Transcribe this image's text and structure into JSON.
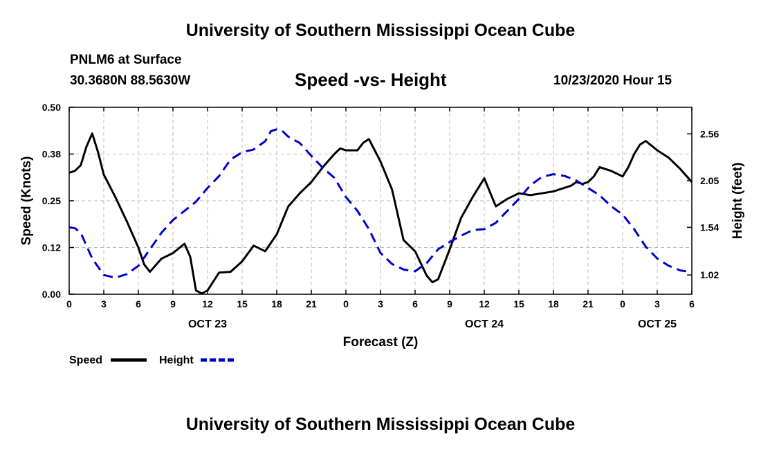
{
  "header": {
    "title": "University of Southern Mississippi Ocean Cube",
    "station": "PNLM6 at Surface",
    "coordinates": "30.3680N 88.5630W",
    "subtitle": "Speed -vs- Height",
    "datetime": "10/23/2020 Hour 15"
  },
  "footer": {
    "title": "University of Southern Mississippi Ocean Cube"
  },
  "colors": {
    "speed": "#000000",
    "height": "#0000cc",
    "grid": "#bbbbbb"
  },
  "chart_data": {
    "type": "line",
    "title": "Speed -vs- Height",
    "xlabel": "Forecast (Z)",
    "ylabel_left": "Speed (Knots)",
    "ylabel_right": "Height (feet)",
    "x_unit": "hours since 2020-10-23 00Z",
    "xlim": [
      0,
      54
    ],
    "ylim_left": [
      0,
      0.5
    ],
    "ylim_right": [
      0.81,
      2.85
    ],
    "x_ticks": [
      0,
      3,
      6,
      9,
      12,
      15,
      18,
      21,
      24,
      27,
      30,
      33,
      36,
      39,
      42,
      45,
      48,
      51,
      54
    ],
    "x_tick_labels": [
      "0",
      "3",
      "6",
      "9",
      "12",
      "15",
      "18",
      "21",
      "0",
      "3",
      "6",
      "9",
      "12",
      "15",
      "18",
      "21",
      "0",
      "3",
      "6"
    ],
    "date_labels": [
      {
        "x": 12,
        "label": "OCT 23"
      },
      {
        "x": 36,
        "label": "OCT 24"
      },
      {
        "x": 51,
        "label": "OCT 25"
      }
    ],
    "y_ticks_left": [
      0.0,
      0.125,
      0.25,
      0.375,
      0.5
    ],
    "y_tick_labels_left": [
      "0.00",
      "0.12",
      "0.25",
      "0.38",
      "0.50"
    ],
    "y_ticks_right": [
      1.02,
      1.54,
      2.05,
      2.56
    ],
    "y_tick_labels_right": [
      "1.02",
      "1.54",
      "2.05",
      "2.56"
    ],
    "grid": true,
    "legend_position": "bottom-left",
    "series": [
      {
        "name": "Speed",
        "axis": "left",
        "style": "solid",
        "x": [
          0,
          0.5,
          1,
          1.5,
          2,
          2.5,
          3,
          4,
          5,
          6,
          6.5,
          7,
          8,
          9,
          10,
          10.5,
          11,
          11.5,
          12,
          13,
          14,
          15,
          16,
          17,
          18,
          19,
          20,
          21,
          22,
          23,
          23.5,
          24,
          25,
          25.5,
          26,
          27,
          28,
          29,
          30,
          31,
          31.5,
          32,
          33,
          34,
          35,
          36,
          37,
          38,
          39,
          40,
          41,
          42,
          43,
          43.5,
          44,
          44.5,
          45,
          45.5,
          46,
          47,
          48,
          48.5,
          49,
          49.5,
          50,
          51,
          52,
          53,
          54
        ],
        "y": [
          0.325,
          0.33,
          0.345,
          0.395,
          0.43,
          0.38,
          0.32,
          0.26,
          0.195,
          0.125,
          0.08,
          0.06,
          0.095,
          0.11,
          0.135,
          0.1,
          0.01,
          0.002,
          0.01,
          0.058,
          0.06,
          0.088,
          0.13,
          0.115,
          0.16,
          0.235,
          0.27,
          0.3,
          0.34,
          0.375,
          0.39,
          0.385,
          0.385,
          0.405,
          0.415,
          0.355,
          0.28,
          0.145,
          0.115,
          0.05,
          0.032,
          0.04,
          0.12,
          0.205,
          0.26,
          0.31,
          0.235,
          0.255,
          0.27,
          0.265,
          0.27,
          0.275,
          0.285,
          0.29,
          0.3,
          0.295,
          0.3,
          0.315,
          0.34,
          0.33,
          0.315,
          0.34,
          0.375,
          0.4,
          0.41,
          0.385,
          0.365,
          0.335,
          0.3
        ]
      },
      {
        "name": "Height",
        "axis": "right",
        "style": "dashed",
        "x": [
          0,
          0.5,
          1,
          2,
          3,
          4,
          5,
          6,
          7,
          8,
          9,
          10,
          11,
          12,
          13,
          14,
          15,
          16,
          17,
          17.5,
          18,
          18.5,
          19,
          20,
          21,
          22,
          23,
          24,
          25,
          26,
          27,
          28,
          29,
          30,
          31,
          32,
          33,
          34,
          35,
          36,
          37,
          38,
          39,
          40,
          41,
          42,
          43,
          44,
          45,
          46,
          47,
          48,
          49,
          50,
          51,
          52,
          53,
          54
        ],
        "y": [
          1.54,
          1.53,
          1.48,
          1.2,
          1.02,
          0.99,
          1.03,
          1.12,
          1.3,
          1.48,
          1.62,
          1.72,
          1.82,
          1.97,
          2.1,
          2.28,
          2.36,
          2.39,
          2.48,
          2.59,
          2.61,
          2.59,
          2.53,
          2.46,
          2.32,
          2.19,
          2.08,
          1.87,
          1.72,
          1.52,
          1.26,
          1.14,
          1.08,
          1.06,
          1.15,
          1.3,
          1.38,
          1.45,
          1.51,
          1.52,
          1.59,
          1.72,
          1.85,
          2.0,
          2.09,
          2.12,
          2.1,
          2.05,
          1.97,
          1.89,
          1.77,
          1.68,
          1.52,
          1.33,
          1.2,
          1.12,
          1.07,
          1.05
        ]
      }
    ]
  }
}
